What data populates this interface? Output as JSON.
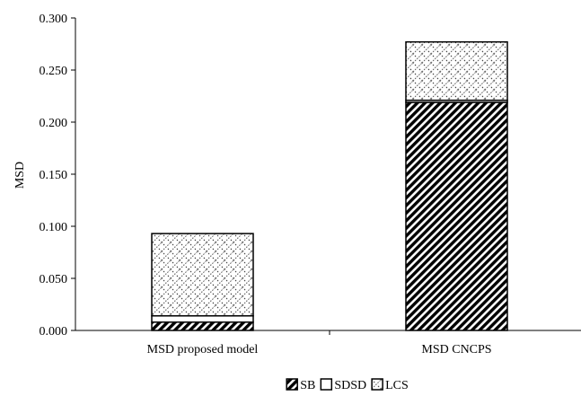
{
  "chart_data": {
    "type": "bar",
    "stacked": true,
    "title": "",
    "xlabel": "",
    "ylabel": "MSD",
    "ylim": [
      0,
      0.3
    ],
    "yticks": [
      "0.000",
      "0.050",
      "0.100",
      "0.150",
      "0.200",
      "0.250",
      "0.300"
    ],
    "categories": [
      "MSD proposed model",
      "MSD CNCPS"
    ],
    "series": [
      {
        "name": "SB",
        "values": [
          0.008,
          0.219
        ],
        "pattern": "diagonal-hatch"
      },
      {
        "name": "SDSD",
        "values": [
          0.006,
          0.002
        ],
        "pattern": "blank"
      },
      {
        "name": "LCS",
        "values": [
          0.079,
          0.056
        ],
        "pattern": "crosshatch-dots"
      }
    ],
    "legend_position": "bottom-center",
    "grid": false
  }
}
